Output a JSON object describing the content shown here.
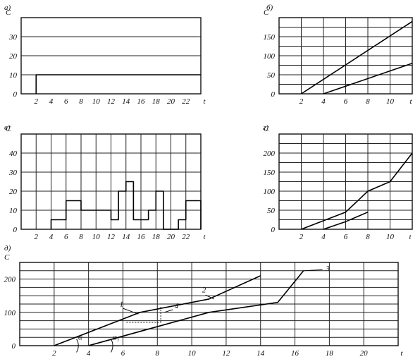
{
  "chart_data": [
    {
      "panel": "а)",
      "type": "line",
      "ylabel": "С",
      "xlabel": "t",
      "x_ticks": [
        "2",
        "4",
        "6",
        "8",
        "10",
        "12",
        "14",
        "16",
        "18",
        "20",
        "22"
      ],
      "y_ticks": [
        "0",
        "10",
        "20",
        "30"
      ],
      "xlim": [
        0,
        24
      ],
      "ylim": [
        0,
        40
      ],
      "grid": true,
      "series": [
        {
          "x": [
            2,
            2,
            24
          ],
          "y": [
            0,
            10,
            10
          ]
        }
      ]
    },
    {
      "panel": "б)",
      "type": "line",
      "ylabel": "С",
      "xlabel": "t",
      "x_ticks": [
        "2",
        "4",
        "6",
        "8",
        "10"
      ],
      "y_ticks": [
        "0",
        "50",
        "100",
        "150"
      ],
      "xlim": [
        0,
        12
      ],
      "ylim": [
        0,
        200
      ],
      "grid": true,
      "series": [
        {
          "x": [
            2,
            12
          ],
          "y": [
            0,
            190
          ]
        },
        {
          "x": [
            4,
            12
          ],
          "y": [
            0,
            80
          ]
        }
      ]
    },
    {
      "panel": "в)",
      "type": "line",
      "ylabel": "С",
      "xlabel": "t",
      "x_ticks": [
        "2",
        "4",
        "6",
        "8",
        "10",
        "12",
        "14",
        "16",
        "18",
        "20",
        "22"
      ],
      "y_ticks": [
        "0",
        "10",
        "20",
        "30",
        "40"
      ],
      "xlim": [
        0,
        24
      ],
      "ylim": [
        0,
        50
      ],
      "grid": true,
      "series": [
        {
          "x": [
            4,
            4,
            6,
            6,
            8,
            8,
            10,
            10,
            12,
            12,
            13,
            13,
            14,
            14,
            15,
            15,
            17,
            17,
            18,
            18,
            19,
            19,
            21,
            21,
            22,
            22,
            24,
            24
          ],
          "y": [
            0,
            5,
            5,
            15,
            15,
            10,
            10,
            10,
            10,
            5,
            5,
            20,
            20,
            25,
            25,
            5,
            5,
            10,
            10,
            20,
            20,
            0,
            0,
            5,
            5,
            15,
            15,
            0
          ]
        }
      ]
    },
    {
      "panel": "г)",
      "type": "line",
      "ylabel": "С",
      "xlabel": "t",
      "x_ticks": [
        "2",
        "4",
        "6",
        "8",
        "10",
        "t"
      ],
      "y_ticks": [
        "0",
        "50",
        "100",
        "150",
        "200"
      ],
      "xlim": [
        0,
        12
      ],
      "ylim": [
        0,
        250
      ],
      "grid": true,
      "series": [
        {
          "x": [
            2,
            6,
            8,
            10,
            12
          ],
          "y": [
            0,
            45,
            100,
            125,
            200
          ]
        },
        {
          "x": [
            4,
            6,
            8
          ],
          "y": [
            0,
            20,
            45
          ]
        }
      ]
    },
    {
      "panel": "д)",
      "type": "line",
      "ylabel": "С",
      "xlabel": "t",
      "x_ticks": [
        "2",
        "4",
        "6",
        "8",
        "10",
        "12",
        "14",
        "16",
        "18",
        "20"
      ],
      "y_ticks": [
        "0",
        "100",
        "200"
      ],
      "xlim": [
        0,
        22
      ],
      "ylim": [
        0,
        250
      ],
      "grid": true,
      "annotations": [
        "1",
        "2",
        "3",
        "4",
        "α",
        "α₁"
      ],
      "series": [
        {
          "x": [
            2,
            7,
            11,
            14
          ],
          "y": [
            0,
            100,
            140,
            210
          ]
        },
        {
          "x": [
            4,
            11,
            15,
            16.5
          ],
          "y": [
            0,
            100,
            130,
            225
          ]
        }
      ]
    }
  ]
}
